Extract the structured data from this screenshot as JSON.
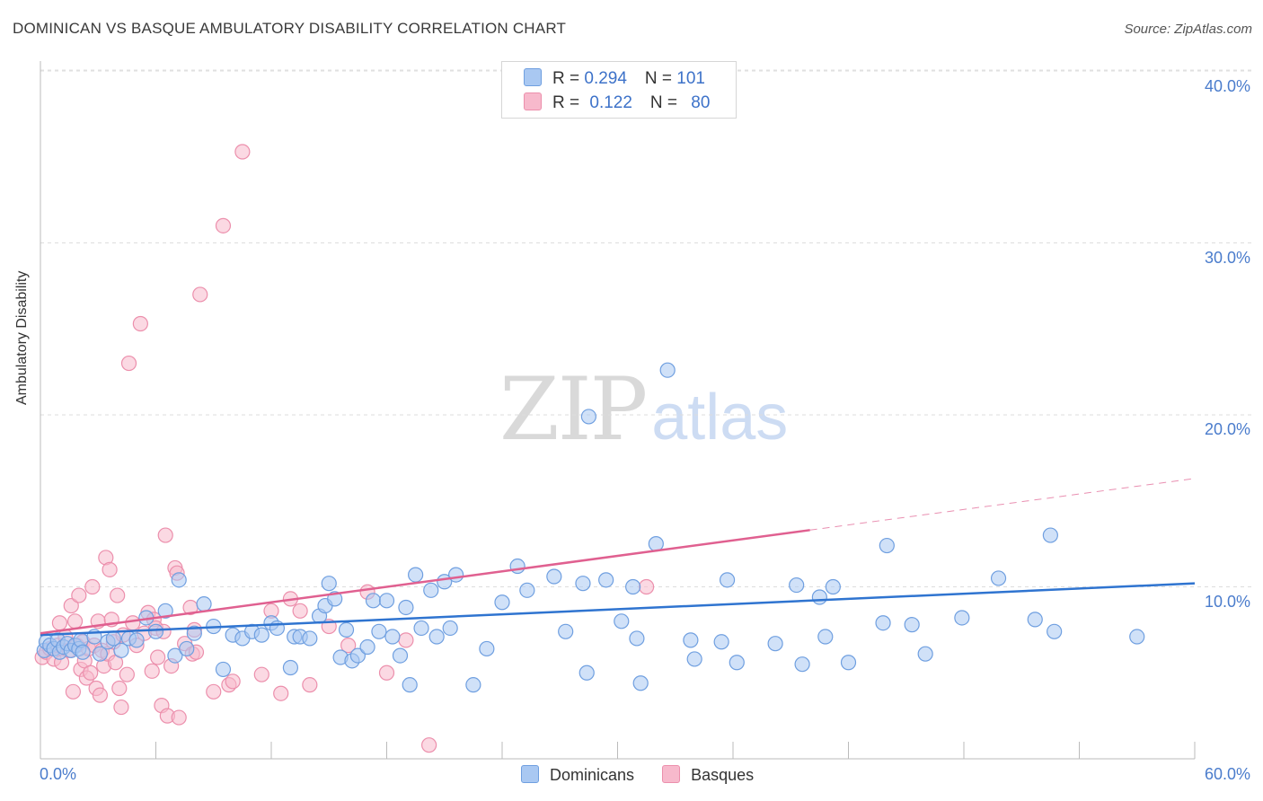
{
  "header": {
    "title": "DOMINICAN VS BASQUE AMBULATORY DISABILITY CORRELATION CHART",
    "source": "Source: ZipAtlas.com"
  },
  "watermark": {
    "zip": "ZIP",
    "atlas": "atlas"
  },
  "legend": {
    "dominicans": {
      "r_label": "R = ",
      "r_value": "0.294",
      "n_label": "N = ",
      "n_value": "101"
    },
    "basques": {
      "r_label": "R = ",
      "r_value": "0.122",
      "n_label": "N = ",
      "n_value": "80"
    }
  },
  "colors": {
    "dominicans_fill": "#a9c8f2",
    "dominicans_stroke": "#6f9fe0",
    "dominicans_line": "#2f74d0",
    "basques_fill": "#f7b9cc",
    "basques_stroke": "#ec8fac",
    "basques_line": "#e06090"
  },
  "chart_data": {
    "type": "scatter",
    "xlabel": "",
    "ylabel": "Ambulatory Disability",
    "xlim": [
      0,
      60
    ],
    "ylim": [
      0,
      40
    ],
    "x_tick_labels": [
      "0.0%",
      "60.0%"
    ],
    "y_ticks": [
      10,
      20,
      30,
      40
    ],
    "y_tick_labels": [
      "10.0%",
      "20.0%",
      "30.0%",
      "40.0%"
    ],
    "grid": true,
    "legend_position": "top-center",
    "series": [
      {
        "name": "Dominicans",
        "trend": {
          "x0": 0,
          "y0": 7.2,
          "x1": 60,
          "y1": 10.2
        },
        "points": [
          [
            0.2,
            6.3
          ],
          [
            0.3,
            6.8
          ],
          [
            0.5,
            6.6
          ],
          [
            0.7,
            6.4
          ],
          [
            0.9,
            6.9
          ],
          [
            1.0,
            6.2
          ],
          [
            1.2,
            6.5
          ],
          [
            1.4,
            6.7
          ],
          [
            1.6,
            6.3
          ],
          [
            1.8,
            6.6
          ],
          [
            2.0,
            6.4
          ],
          [
            2.1,
            6.9
          ],
          [
            2.2,
            6.2
          ],
          [
            2.8,
            7.1
          ],
          [
            3.1,
            6.1
          ],
          [
            3.5,
            6.8
          ],
          [
            3.8,
            7.0
          ],
          [
            4.2,
            6.3
          ],
          [
            4.6,
            7.0
          ],
          [
            5.0,
            6.9
          ],
          [
            5.5,
            8.2
          ],
          [
            6.0,
            7.4
          ],
          [
            6.5,
            8.6
          ],
          [
            7.0,
            6.0
          ],
          [
            7.2,
            10.4
          ],
          [
            7.6,
            6.4
          ],
          [
            8.0,
            7.3
          ],
          [
            8.5,
            9.0
          ],
          [
            9.0,
            7.7
          ],
          [
            9.5,
            5.2
          ],
          [
            10.0,
            7.2
          ],
          [
            10.5,
            7.0
          ],
          [
            11.0,
            7.4
          ],
          [
            11.5,
            7.2
          ],
          [
            12.0,
            7.9
          ],
          [
            12.3,
            7.6
          ],
          [
            13.0,
            5.3
          ],
          [
            13.2,
            7.1
          ],
          [
            13.5,
            7.1
          ],
          [
            14.0,
            7.0
          ],
          [
            14.5,
            8.3
          ],
          [
            14.8,
            8.9
          ],
          [
            15.0,
            10.2
          ],
          [
            15.3,
            9.3
          ],
          [
            15.6,
            5.9
          ],
          [
            15.9,
            7.5
          ],
          [
            16.2,
            5.7
          ],
          [
            16.5,
            6.0
          ],
          [
            17.0,
            6.5
          ],
          [
            17.3,
            9.2
          ],
          [
            17.6,
            7.4
          ],
          [
            18.0,
            9.2
          ],
          [
            18.3,
            7.1
          ],
          [
            18.7,
            6.0
          ],
          [
            19.0,
            8.8
          ],
          [
            19.2,
            4.3
          ],
          [
            19.5,
            10.7
          ],
          [
            19.8,
            7.6
          ],
          [
            20.3,
            9.8
          ],
          [
            20.6,
            7.1
          ],
          [
            21.0,
            10.3
          ],
          [
            21.3,
            7.6
          ],
          [
            21.6,
            10.7
          ],
          [
            22.5,
            4.3
          ],
          [
            23.2,
            6.4
          ],
          [
            24.0,
            9.1
          ],
          [
            24.8,
            11.2
          ],
          [
            25.3,
            9.8
          ],
          [
            26.7,
            10.6
          ],
          [
            27.3,
            7.4
          ],
          [
            28.2,
            10.2
          ],
          [
            28.4,
            5.0
          ],
          [
            28.5,
            19.9
          ],
          [
            29.4,
            10.4
          ],
          [
            30.2,
            8.0
          ],
          [
            30.8,
            10.0
          ],
          [
            31.0,
            7.0
          ],
          [
            31.2,
            4.4
          ],
          [
            32.0,
            12.5
          ],
          [
            32.6,
            22.6
          ],
          [
            33.8,
            6.9
          ],
          [
            34.0,
            5.8
          ],
          [
            35.4,
            6.8
          ],
          [
            35.7,
            10.4
          ],
          [
            36.2,
            5.6
          ],
          [
            38.2,
            6.7
          ],
          [
            39.3,
            10.1
          ],
          [
            39.6,
            5.5
          ],
          [
            40.5,
            9.4
          ],
          [
            40.8,
            7.1
          ],
          [
            41.2,
            10.0
          ],
          [
            42.0,
            5.6
          ],
          [
            43.8,
            7.9
          ],
          [
            44.0,
            12.4
          ],
          [
            45.3,
            7.8
          ],
          [
            46.0,
            6.1
          ],
          [
            47.9,
            8.2
          ],
          [
            49.8,
            10.5
          ],
          [
            51.7,
            8.1
          ],
          [
            52.5,
            13.0
          ],
          [
            52.7,
            7.4
          ],
          [
            57.0,
            7.1
          ]
        ]
      },
      {
        "name": "Basques",
        "trend": {
          "x0": 0,
          "y0": 7.3,
          "x1": 40,
          "y1": 13.3,
          "x_dash_end": 60,
          "y_dash_end": 16.3
        },
        "points": [
          [
            0.1,
            5.9
          ],
          [
            0.3,
            6.2
          ],
          [
            0.5,
            6.4
          ],
          [
            0.7,
            5.8
          ],
          [
            0.9,
            6.6
          ],
          [
            1.0,
            7.9
          ],
          [
            1.1,
            5.6
          ],
          [
            1.3,
            7.1
          ],
          [
            1.5,
            6.3
          ],
          [
            1.6,
            8.9
          ],
          [
            1.7,
            3.9
          ],
          [
            1.8,
            8.0
          ],
          [
            1.9,
            6.6
          ],
          [
            2.0,
            9.5
          ],
          [
            2.1,
            5.2
          ],
          [
            2.2,
            6.8
          ],
          [
            2.3,
            5.7
          ],
          [
            2.4,
            4.7
          ],
          [
            2.5,
            6.4
          ],
          [
            2.6,
            5.0
          ],
          [
            2.7,
            10.0
          ],
          [
            2.8,
            6.6
          ],
          [
            2.9,
            4.1
          ],
          [
            3.0,
            8.0
          ],
          [
            3.1,
            3.7
          ],
          [
            3.2,
            6.3
          ],
          [
            3.3,
            5.4
          ],
          [
            3.4,
            11.7
          ],
          [
            3.5,
            6.1
          ],
          [
            3.6,
            11.0
          ],
          [
            3.7,
            8.1
          ],
          [
            3.8,
            6.8
          ],
          [
            3.9,
            5.6
          ],
          [
            4.0,
            9.5
          ],
          [
            4.1,
            4.1
          ],
          [
            4.2,
            3.0
          ],
          [
            4.3,
            7.2
          ],
          [
            4.5,
            4.9
          ],
          [
            4.6,
            23.0
          ],
          [
            4.8,
            7.9
          ],
          [
            5.0,
            6.6
          ],
          [
            5.2,
            25.3
          ],
          [
            5.4,
            7.3
          ],
          [
            5.6,
            8.5
          ],
          [
            5.8,
            5.1
          ],
          [
            5.9,
            8.1
          ],
          [
            6.0,
            7.6
          ],
          [
            6.1,
            5.9
          ],
          [
            6.3,
            3.1
          ],
          [
            6.4,
            7.4
          ],
          [
            6.5,
            13.0
          ],
          [
            6.6,
            2.5
          ],
          [
            6.8,
            5.4
          ],
          [
            7.0,
            11.1
          ],
          [
            7.1,
            10.8
          ],
          [
            7.2,
            2.4
          ],
          [
            7.5,
            6.7
          ],
          [
            7.8,
            8.8
          ],
          [
            7.9,
            6.1
          ],
          [
            8.0,
            7.5
          ],
          [
            8.1,
            6.2
          ],
          [
            8.3,
            27.0
          ],
          [
            9.0,
            3.9
          ],
          [
            9.5,
            31.0
          ],
          [
            9.8,
            4.3
          ],
          [
            10.0,
            4.5
          ],
          [
            10.5,
            35.3
          ],
          [
            11.5,
            4.9
          ],
          [
            12.0,
            8.6
          ],
          [
            12.5,
            3.8
          ],
          [
            13.0,
            9.3
          ],
          [
            13.5,
            8.6
          ],
          [
            14.0,
            4.3
          ],
          [
            15.0,
            7.7
          ],
          [
            16.0,
            6.6
          ],
          [
            17.0,
            9.7
          ],
          [
            18.0,
            5.0
          ],
          [
            19.0,
            6.9
          ],
          [
            20.2,
            0.8
          ],
          [
            31.5,
            10.0
          ]
        ]
      }
    ]
  }
}
